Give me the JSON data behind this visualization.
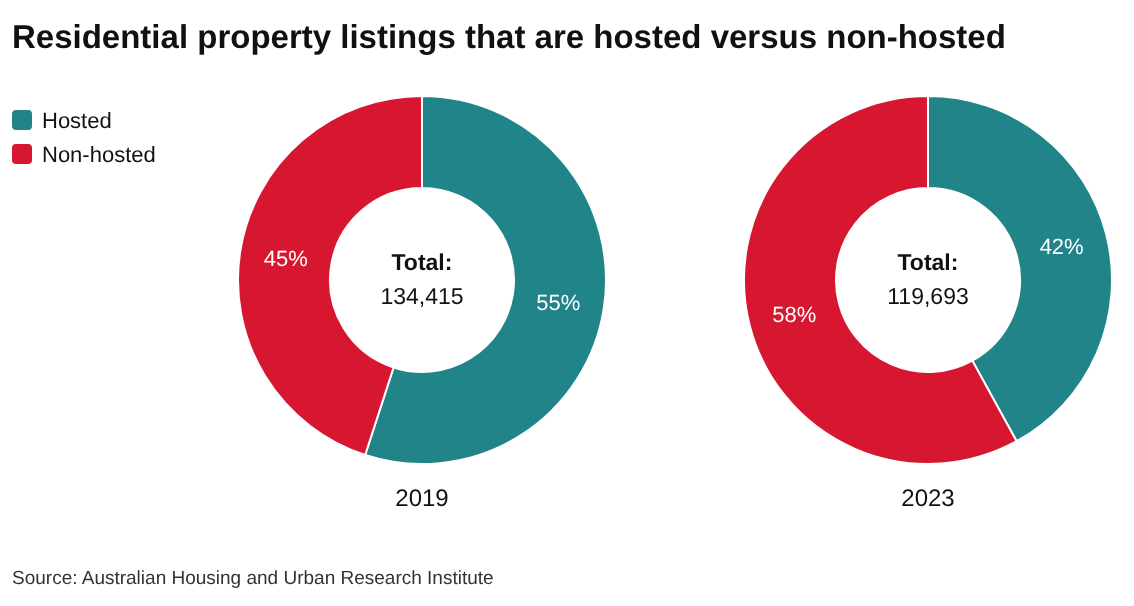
{
  "chart_data": {
    "type": "donut",
    "title": "Residential property listings that are hosted versus non-hosted",
    "categories": [
      "Hosted",
      "Non-hosted"
    ],
    "colors": [
      "#208489",
      "#d71630"
    ],
    "legend": "top left",
    "series": [
      {
        "name": "2019",
        "values": [
          55,
          45
        ],
        "value_labels": [
          "55%",
          "45%"
        ]
      },
      {
        "name": "2023",
        "values": [
          42,
          58
        ],
        "value_labels": [
          "42%",
          "58%"
        ]
      }
    ],
    "annotations": [
      "Total:",
      "134,415",
      "Total:",
      "119,693",
      "Source: Australian Housing and Urban Research Institute"
    ]
  }
}
